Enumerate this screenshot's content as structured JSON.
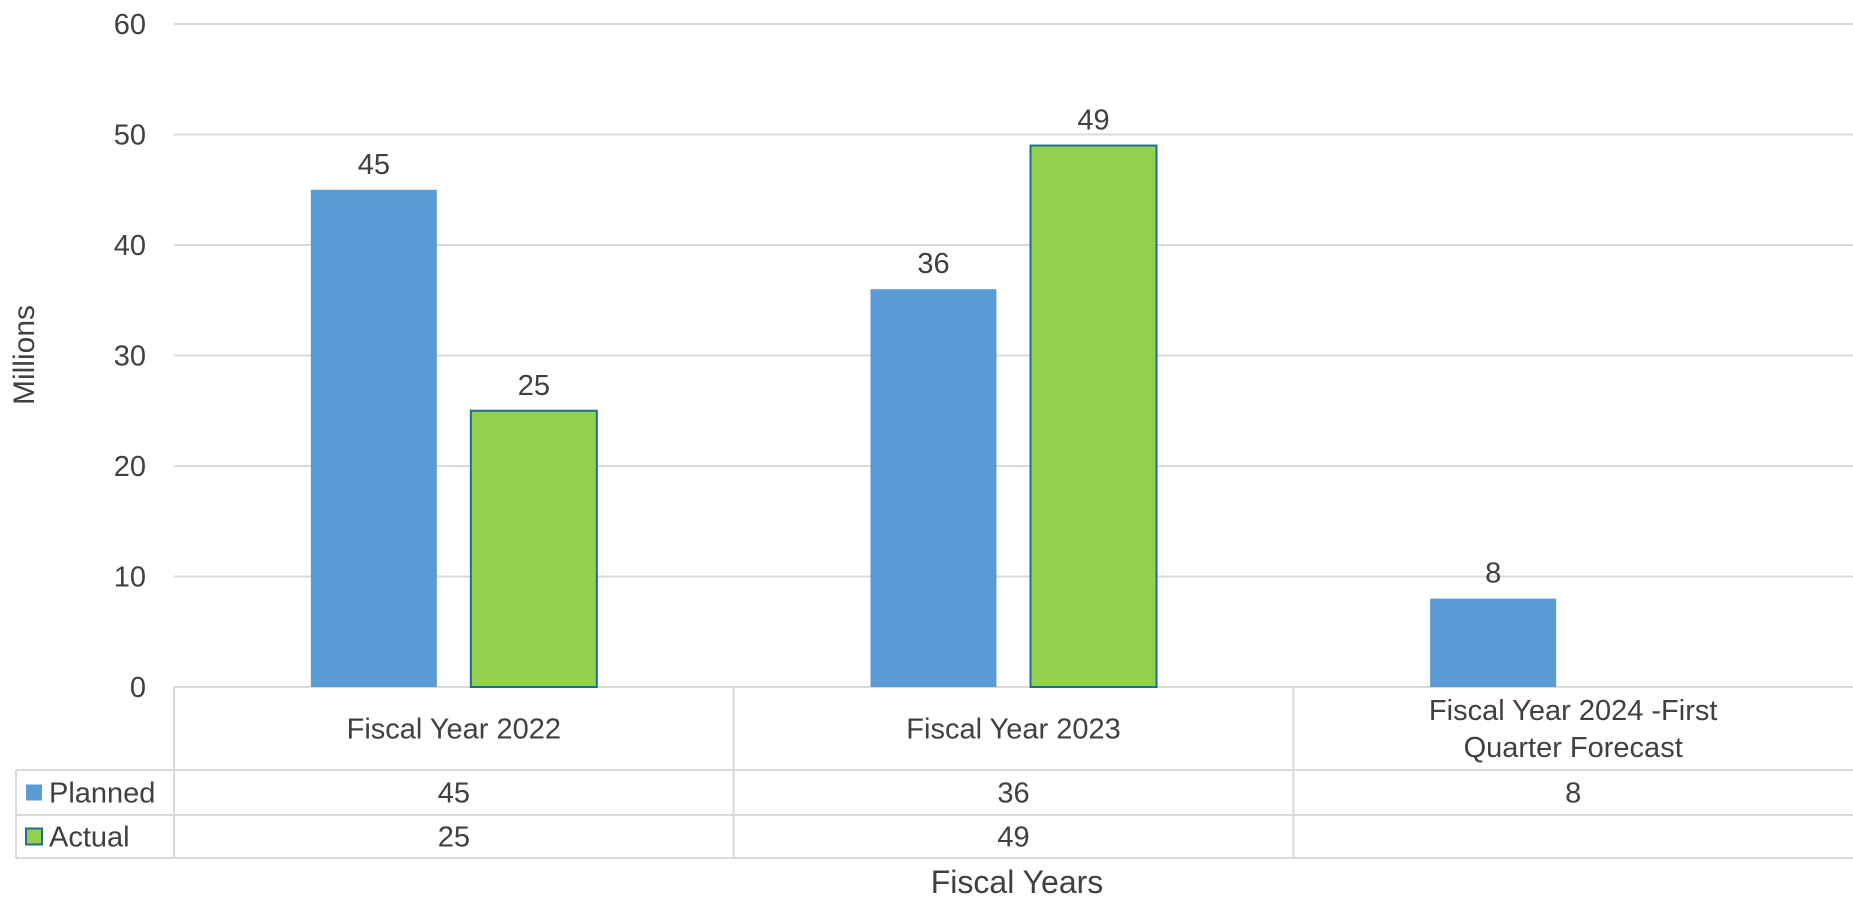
{
  "chart_data": {
    "type": "bar",
    "categories": [
      "Fiscal Year 2022",
      "Fiscal Year 2023",
      "Fiscal Year 2024 -First Quarter Forecast"
    ],
    "series": [
      {
        "name": "Planned",
        "values": [
          45,
          36,
          8
        ],
        "color": "#5b9bd5"
      },
      {
        "name": "Actual",
        "values": [
          25,
          49,
          null
        ],
        "color": "#92d050"
      }
    ],
    "xlabel": "Fiscal Years",
    "ylabel": "Millions",
    "ylim": [
      0,
      60
    ],
    "yticks": [
      0,
      10,
      20,
      30,
      40,
      50,
      60
    ],
    "grid": true,
    "legend": "data table",
    "data_table": true,
    "colors": {
      "grid": "#d9d9d9",
      "text": "#404040",
      "actual_border": "#1f6f8b"
    }
  }
}
